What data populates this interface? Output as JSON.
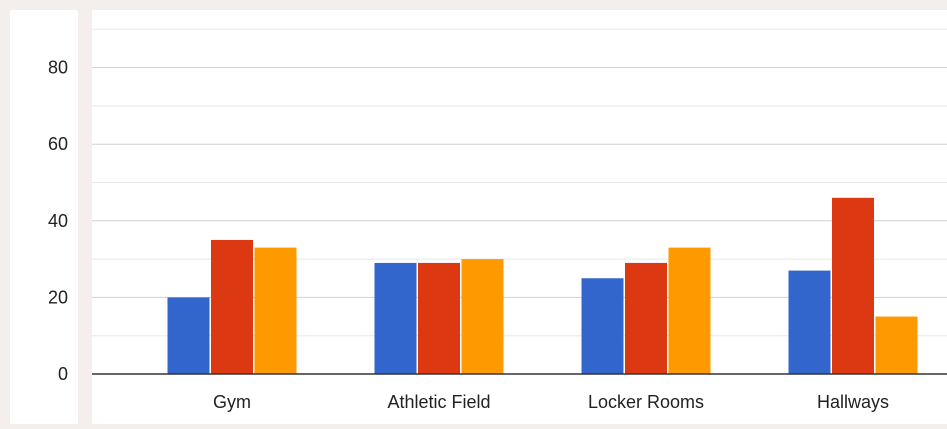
{
  "chart_data": {
    "type": "bar",
    "categories": [
      "Gym",
      "Athletic Field",
      "Locker Rooms",
      "Hallways"
    ],
    "series": [
      {
        "color": "#3366cc",
        "values": [
          20,
          29,
          25,
          27
        ]
      },
      {
        "color": "#dc3912",
        "values": [
          35,
          29,
          29,
          46
        ]
      },
      {
        "color": "#ff9900",
        "values": [
          33,
          30,
          33,
          15
        ]
      }
    ],
    "y_ticks": [
      0,
      20,
      40,
      60,
      80
    ],
    "ylim": [
      0,
      90
    ],
    "grid": true,
    "title": "",
    "xlabel": "",
    "ylabel": ""
  }
}
